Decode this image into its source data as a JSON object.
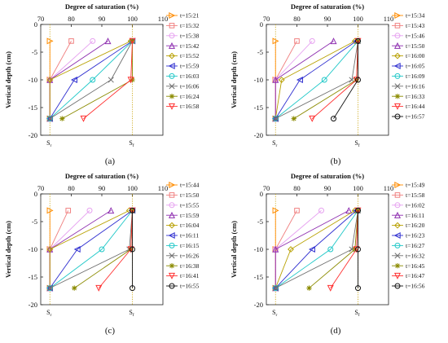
{
  "figure": {
    "panel_count": 4
  },
  "chart_data": [
    {
      "type": "line",
      "panel_label": "(a)",
      "title": "",
      "xlabel": "Degree of saturation (%)",
      "ylabel": "Vertical depth (cm)",
      "xlim": [
        70,
        110
      ],
      "ylim": [
        -20,
        0
      ],
      "xticks": [
        70,
        80,
        90,
        100,
        110
      ],
      "yticks": [
        0,
        -5,
        -10,
        -15,
        -20
      ],
      "grid": false,
      "legend_position": "right",
      "ref_lines": [
        {
          "label": "S",
          "sub": "r",
          "x": 73
        },
        {
          "label": "S",
          "sub": "f",
          "x": 100
        }
      ],
      "series": [
        {
          "name": "t=15:21",
          "color": "#ff8c00",
          "marker": "triangle-right",
          "points": [
            [
              73,
              -3
            ],
            [
              73,
              -10
            ],
            [
              73,
              -17
            ]
          ]
        },
        {
          "name": "t=15:32",
          "color": "#f08080",
          "marker": "square",
          "points": [
            [
              80,
              -3
            ],
            [
              73,
              -10
            ],
            [
              73,
              -17
            ]
          ]
        },
        {
          "name": "t=15:38",
          "color": "#e6a0f0",
          "marker": "circle",
          "points": [
            [
              87,
              -3
            ],
            [
              73,
              -10
            ],
            [
              73,
              -17
            ]
          ]
        },
        {
          "name": "t=15:42",
          "color": "#8e2fb0",
          "marker": "triangle-up",
          "points": [
            [
              92,
              -3
            ],
            [
              73,
              -10
            ],
            [
              73,
              -17
            ]
          ]
        },
        {
          "name": "t=15:52",
          "color": "#b8a000",
          "marker": "diamond",
          "points": [
            [
              99.5,
              -3
            ],
            [
              73,
              -10
            ],
            [
              73,
              -17
            ]
          ]
        },
        {
          "name": "t=15:59",
          "color": "#3030d0",
          "marker": "triangle-left",
          "points": [
            [
              100,
              -3
            ],
            [
              81,
              -10
            ],
            [
              73,
              -17
            ]
          ]
        },
        {
          "name": "t=16:03",
          "color": "#20c8c8",
          "marker": "circle",
          "points": [
            [
              100,
              -3
            ],
            [
              87,
              -10
            ],
            [
              73,
              -17
            ]
          ]
        },
        {
          "name": "t=16:06",
          "color": "#707070",
          "marker": "x",
          "points": [
            [
              100,
              -3
            ],
            [
              93,
              -10
            ],
            [
              73,
              -17
            ]
          ]
        },
        {
          "name": "t=16:24",
          "color": "#8b8b00",
          "marker": "asterisk",
          "points": [
            [
              100,
              -3
            ],
            [
              100,
              -10
            ],
            [
              77,
              -17
            ]
          ]
        },
        {
          "name": "t=16:58",
          "color": "#ff3030",
          "marker": "triangle-down",
          "points": [
            [
              100,
              -3
            ],
            [
              99.5,
              -10
            ],
            [
              84,
              -17
            ]
          ]
        }
      ]
    },
    {
      "type": "line",
      "panel_label": "(b)",
      "title": "",
      "xlabel": "Degree of saturation (%)",
      "ylabel": "Vertical depth (cm)",
      "xlim": [
        70,
        110
      ],
      "ylim": [
        -20,
        0
      ],
      "xticks": [
        70,
        80,
        90,
        100,
        110
      ],
      "yticks": [
        0,
        -5,
        -10,
        -15,
        -20
      ],
      "grid": false,
      "legend_position": "right",
      "ref_lines": [
        {
          "label": "S",
          "sub": "r",
          "x": 73
        },
        {
          "label": "S",
          "sub": "f",
          "x": 100
        }
      ],
      "series": [
        {
          "name": "t=15:34",
          "color": "#ff8c00",
          "marker": "triangle-right",
          "points": [
            [
              73,
              -3
            ],
            [
              73,
              -10
            ],
            [
              73,
              -17
            ]
          ]
        },
        {
          "name": "t=15:43",
          "color": "#f08080",
          "marker": "square",
          "points": [
            [
              80,
              -3
            ],
            [
              73,
              -10
            ],
            [
              73,
              -17
            ]
          ]
        },
        {
          "name": "t=15:46",
          "color": "#e6a0f0",
          "marker": "circle",
          "points": [
            [
              85,
              -3
            ],
            [
              73,
              -10
            ],
            [
              73,
              -17
            ]
          ]
        },
        {
          "name": "t=15:50",
          "color": "#8e2fb0",
          "marker": "triangle-up",
          "points": [
            [
              92,
              -3
            ],
            [
              73,
              -10
            ],
            [
              73,
              -17
            ]
          ]
        },
        {
          "name": "t=16:00",
          "color": "#b8a000",
          "marker": "diamond",
          "points": [
            [
              99,
              -3
            ],
            [
              75,
              -10
            ],
            [
              73,
              -17
            ]
          ]
        },
        {
          "name": "t=16:05",
          "color": "#3030d0",
          "marker": "triangle-left",
          "points": [
            [
              99.5,
              -3
            ],
            [
              81,
              -10
            ],
            [
              73,
              -17
            ]
          ]
        },
        {
          "name": "t=16:09",
          "color": "#20c8c8",
          "marker": "circle",
          "points": [
            [
              100,
              -3
            ],
            [
              89,
              -10
            ],
            [
              73,
              -17
            ]
          ]
        },
        {
          "name": "t=16:16",
          "color": "#707070",
          "marker": "x",
          "points": [
            [
              100,
              -3
            ],
            [
              98,
              -10
            ],
            [
              73,
              -17
            ]
          ]
        },
        {
          "name": "t=16:33",
          "color": "#8b8b00",
          "marker": "asterisk",
          "points": [
            [
              100,
              -3
            ],
            [
              99.5,
              -10
            ],
            [
              79,
              -17
            ]
          ]
        },
        {
          "name": "t=16:44",
          "color": "#ff3030",
          "marker": "triangle-down",
          "points": [
            [
              100,
              -3
            ],
            [
              99.5,
              -10
            ],
            [
              85,
              -17
            ]
          ]
        },
        {
          "name": "t=16:57",
          "color": "#111111",
          "marker": "circle",
          "points": [
            [
              100,
              -3
            ],
            [
              100,
              -10
            ],
            [
              92,
              -17
            ]
          ]
        }
      ]
    },
    {
      "type": "line",
      "panel_label": "(c)",
      "title": "",
      "xlabel": "Degree of saturation (%)",
      "ylabel": "Vertical depth (cm)",
      "xlim": [
        70,
        110
      ],
      "ylim": [
        -20,
        0
      ],
      "xticks": [
        70,
        80,
        90,
        100,
        110
      ],
      "yticks": [
        0,
        -5,
        -10,
        -15,
        -20
      ],
      "grid": false,
      "legend_position": "right",
      "ref_lines": [
        {
          "label": "S",
          "sub": "r",
          "x": 73
        },
        {
          "label": "S",
          "sub": "f",
          "x": 100
        }
      ],
      "series": [
        {
          "name": "t=15:44",
          "color": "#ff8c00",
          "marker": "triangle-right",
          "points": [
            [
              73,
              -3
            ],
            [
              73,
              -10
            ],
            [
              73,
              -17
            ]
          ]
        },
        {
          "name": "t=15:50",
          "color": "#f08080",
          "marker": "square",
          "points": [
            [
              79,
              -3
            ],
            [
              73,
              -10
            ],
            [
              73,
              -17
            ]
          ]
        },
        {
          "name": "t=15:55",
          "color": "#e6a0f0",
          "marker": "circle",
          "points": [
            [
              86,
              -3
            ],
            [
              73,
              -10
            ],
            [
              73,
              -17
            ]
          ]
        },
        {
          "name": "t=15:59",
          "color": "#8e2fb0",
          "marker": "triangle-up",
          "points": [
            [
              93,
              -3
            ],
            [
              73,
              -10
            ],
            [
              73,
              -17
            ]
          ]
        },
        {
          "name": "t=16:04",
          "color": "#b8a000",
          "marker": "diamond",
          "points": [
            [
              99,
              -3
            ],
            [
              73,
              -10
            ],
            [
              73,
              -17
            ]
          ]
        },
        {
          "name": "t=16:11",
          "color": "#3030d0",
          "marker": "triangle-left",
          "points": [
            [
              100,
              -3
            ],
            [
              82,
              -10
            ],
            [
              73,
              -17
            ]
          ]
        },
        {
          "name": "t=16:15",
          "color": "#20c8c8",
          "marker": "circle",
          "points": [
            [
              100,
              -3
            ],
            [
              90,
              -10
            ],
            [
              73,
              -17
            ]
          ]
        },
        {
          "name": "t=16:26",
          "color": "#707070",
          "marker": "x",
          "points": [
            [
              100,
              -3
            ],
            [
              99,
              -10
            ],
            [
              73,
              -17
            ]
          ]
        },
        {
          "name": "t=16:38",
          "color": "#8b8b00",
          "marker": "asterisk",
          "points": [
            [
              100,
              -3
            ],
            [
              99.5,
              -10
            ],
            [
              81,
              -17
            ]
          ]
        },
        {
          "name": "t=16:41",
          "color": "#ff3030",
          "marker": "triangle-down",
          "points": [
            [
              100,
              -3
            ],
            [
              99.5,
              -10
            ],
            [
              89,
              -17
            ]
          ]
        },
        {
          "name": "t=16:55",
          "color": "#111111",
          "marker": "circle",
          "points": [
            [
              100,
              -3
            ],
            [
              100,
              -10
            ],
            [
              100,
              -17
            ]
          ]
        }
      ]
    },
    {
      "type": "line",
      "panel_label": "(d)",
      "title": "",
      "xlabel": "Degree of saturation (%)",
      "ylabel": "Vertical depth (cm)",
      "xlim": [
        70,
        110
      ],
      "ylim": [
        -20,
        0
      ],
      "xticks": [
        70,
        80,
        90,
        100,
        110
      ],
      "yticks": [
        0,
        -5,
        -10,
        -15,
        -20
      ],
      "grid": false,
      "legend_position": "right",
      "ref_lines": [
        {
          "label": "S",
          "sub": "r",
          "x": 73
        },
        {
          "label": "S",
          "sub": "f",
          "x": 100
        }
      ],
      "series": [
        {
          "name": "t=15:49",
          "color": "#ff8c00",
          "marker": "triangle-right",
          "points": [
            [
              73,
              -3
            ],
            [
              73,
              -10
            ],
            [
              73,
              -17
            ]
          ]
        },
        {
          "name": "t=15:58",
          "color": "#f08080",
          "marker": "square",
          "points": [
            [
              80,
              -3
            ],
            [
              73,
              -10
            ],
            [
              73,
              -17
            ]
          ]
        },
        {
          "name": "t=16:02",
          "color": "#e6a0f0",
          "marker": "circle",
          "points": [
            [
              88,
              -3
            ],
            [
              73,
              -10
            ],
            [
              73,
              -17
            ]
          ]
        },
        {
          "name": "t=16:11",
          "color": "#8e2fb0",
          "marker": "triangle-up",
          "points": [
            [
              97,
              -3
            ],
            [
              73,
              -10
            ],
            [
              73,
              -17
            ]
          ]
        },
        {
          "name": "t=16:20",
          "color": "#b8a000",
          "marker": "diamond",
          "points": [
            [
              99,
              -3
            ],
            [
              78,
              -10
            ],
            [
              73,
              -17
            ]
          ]
        },
        {
          "name": "t=16:23",
          "color": "#3030d0",
          "marker": "triangle-left",
          "points": [
            [
              99.5,
              -3
            ],
            [
              85,
              -10
            ],
            [
              73,
              -17
            ]
          ]
        },
        {
          "name": "t=16:27",
          "color": "#20c8c8",
          "marker": "circle",
          "points": [
            [
              100,
              -3
            ],
            [
              91,
              -10
            ],
            [
              73,
              -17
            ]
          ]
        },
        {
          "name": "t=16:32",
          "color": "#707070",
          "marker": "x",
          "points": [
            [
              100,
              -3
            ],
            [
              98,
              -10
            ],
            [
              73,
              -17
            ]
          ]
        },
        {
          "name": "t=16:45",
          "color": "#8b8b00",
          "marker": "asterisk",
          "points": [
            [
              100,
              -3
            ],
            [
              99,
              -10
            ],
            [
              84,
              -17
            ]
          ]
        },
        {
          "name": "t=16:47",
          "color": "#ff3030",
          "marker": "triangle-down",
          "points": [
            [
              100,
              -3
            ],
            [
              99.5,
              -10
            ],
            [
              91,
              -17
            ]
          ]
        },
        {
          "name": "t=16:56",
          "color": "#111111",
          "marker": "circle",
          "points": [
            [
              100,
              -3
            ],
            [
              100,
              -10
            ],
            [
              100,
              -17
            ]
          ]
        }
      ]
    }
  ]
}
